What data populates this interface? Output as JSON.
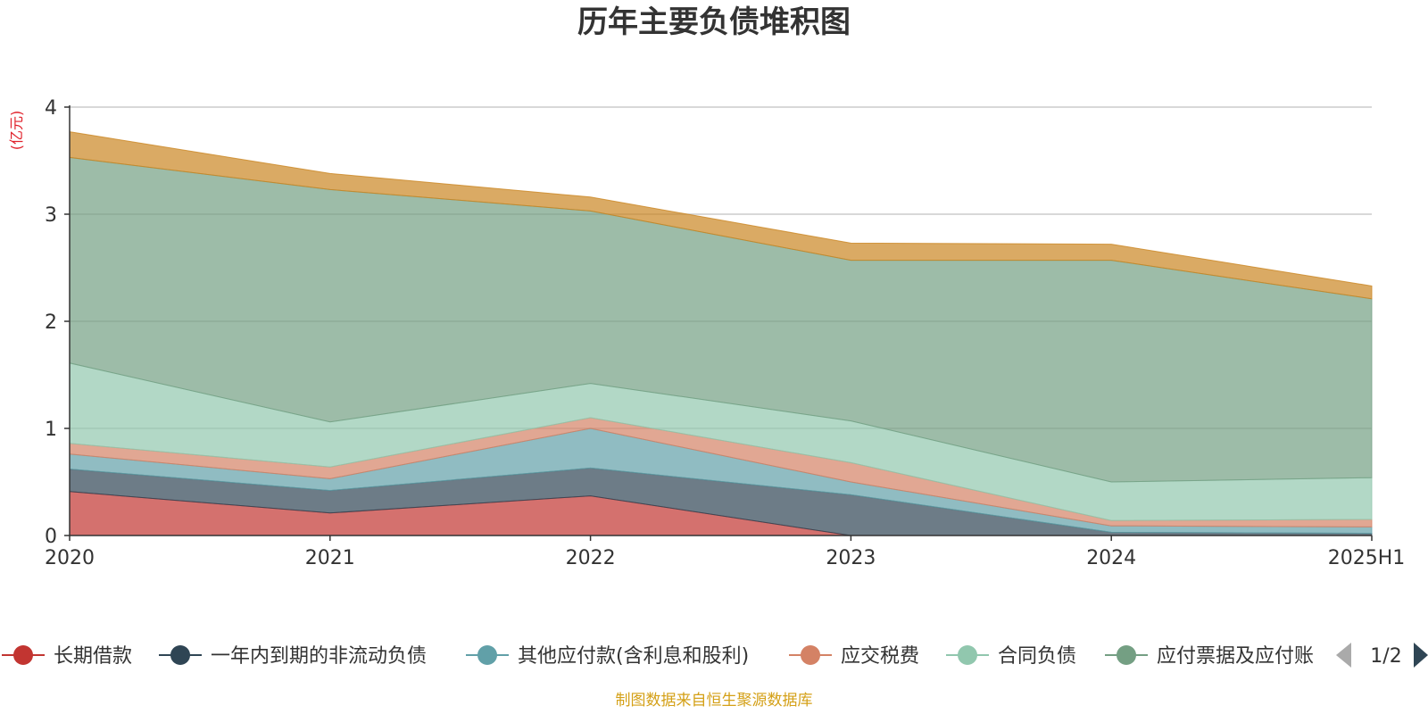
{
  "chart_data": {
    "type": "area",
    "title": "历年主要负债堆积图",
    "unit_label": "(亿元)",
    "categories": [
      "2020",
      "2021",
      "2022",
      "2023",
      "2024",
      "2025H1"
    ],
    "y_ticks": [
      "0",
      "1",
      "2",
      "3",
      "4"
    ],
    "ylim": [
      0,
      4
    ],
    "grid": true,
    "stacked": true,
    "series": [
      {
        "name": "长期借款",
        "color": "#c23531",
        "values": [
          0.41,
          0.21,
          0.37,
          0.0,
          0.0,
          0.0
        ]
      },
      {
        "name": "一年内到期的非流动负债",
        "color": "#2f4554",
        "values": [
          0.21,
          0.21,
          0.26,
          0.38,
          0.03,
          0.02
        ]
      },
      {
        "name": "其他应付款(含利息和股利)",
        "color": "#61a0a8",
        "values": [
          0.14,
          0.11,
          0.37,
          0.12,
          0.06,
          0.06
        ]
      },
      {
        "name": "应交税费",
        "color": "#d48265",
        "values": [
          0.1,
          0.11,
          0.1,
          0.18,
          0.05,
          0.07
        ]
      },
      {
        "name": "合同负债",
        "color": "#91c7ae",
        "values": [
          0.75,
          0.42,
          0.32,
          0.39,
          0.36,
          0.39
        ]
      },
      {
        "name": "应付票据及应付账款",
        "color": "#749f83",
        "values": [
          1.92,
          2.17,
          1.61,
          1.5,
          2.07,
          1.67
        ]
      },
      {
        "name": "",
        "color": "#ca8622",
        "values": [
          0.24,
          0.15,
          0.13,
          0.16,
          0.15,
          0.12
        ]
      }
    ],
    "legend": {
      "visible_items": [
        {
          "label": "长期借款",
          "color": "#c23531"
        },
        {
          "label": "一年内到期的非流动负债",
          "color": "#2f4554"
        },
        {
          "label": "其他应付款(含利息和股利)",
          "color": "#61a0a8"
        },
        {
          "label": "应交税费",
          "color": "#d48265"
        },
        {
          "label": "合同负债",
          "color": "#91c7ae"
        },
        {
          "label": "应付票据及应付账",
          "color": "#749f83"
        }
      ],
      "page_indicator": "1/2",
      "prev_icon": "triangle-left-icon",
      "next_icon": "triangle-right-icon"
    },
    "source_note": "制图数据来自恒生聚源数据库",
    "colors": {
      "title": "#333333",
      "unit": "#e0202a",
      "axis": "#333333",
      "grid": "#cccccc",
      "source": "#d4a017",
      "pager_inactive": "#aaaaaa",
      "pager_active": "#2f4554"
    }
  }
}
